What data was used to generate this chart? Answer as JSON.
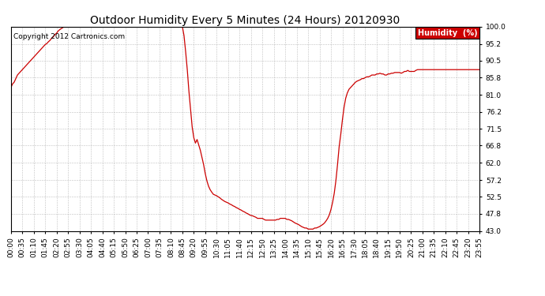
{
  "title": "Outdoor Humidity Every 5 Minutes (24 Hours) 20120930",
  "copyright": "Copyright 2012 Cartronics.com",
  "legend_label": "Humidity  (%)",
  "line_color": "#cc0000",
  "background_color": "#ffffff",
  "grid_color": "#b0b0b0",
  "ylim": [
    43.0,
    100.0
  ],
  "yticks": [
    43.0,
    47.8,
    52.5,
    57.2,
    62.0,
    66.8,
    71.5,
    76.2,
    81.0,
    85.8,
    90.5,
    95.2,
    100.0
  ],
  "title_fontsize": 10,
  "tick_fontsize": 6.5,
  "xtick_step": 7,
  "n_points": 288,
  "data": [
    83.0,
    84.0,
    84.5,
    85.5,
    86.5,
    87.0,
    87.5,
    88.0,
    88.5,
    89.0,
    89.5,
    90.0,
    90.5,
    91.0,
    91.5,
    92.0,
    92.5,
    93.0,
    93.5,
    94.0,
    94.5,
    95.0,
    95.3,
    95.8,
    96.2,
    96.8,
    97.2,
    97.8,
    98.2,
    98.8,
    99.2,
    99.5,
    99.8,
    100.0,
    100.0,
    100.0,
    100.0,
    100.0,
    100.0,
    100.0,
    100.0,
    100.0,
    100.0,
    100.0,
    100.0,
    100.0,
    100.0,
    100.0,
    100.0,
    100.0,
    100.0,
    100.0,
    100.0,
    100.0,
    100.0,
    100.0,
    100.0,
    100.0,
    100.0,
    100.0,
    100.0,
    100.0,
    100.0,
    100.0,
    100.0,
    100.0,
    100.0,
    100.0,
    100.0,
    100.0,
    100.0,
    100.0,
    100.0,
    100.0,
    100.0,
    100.0,
    100.0,
    100.0,
    100.0,
    100.0,
    100.0,
    100.0,
    100.0,
    100.0,
    100.0,
    100.0,
    100.0,
    100.0,
    100.0,
    100.0,
    100.0,
    100.0,
    100.0,
    100.0,
    100.0,
    100.0,
    100.0,
    100.0,
    100.0,
    100.0,
    100.0,
    100.0,
    100.0,
    100.0,
    100.0,
    100.0,
    97.5,
    93.0,
    88.0,
    82.0,
    77.0,
    72.0,
    69.0,
    67.5,
    68.5,
    67.0,
    65.5,
    63.5,
    61.5,
    59.0,
    57.0,
    55.5,
    54.5,
    53.8,
    53.2,
    53.0,
    52.8,
    52.5,
    52.2,
    51.8,
    51.5,
    51.2,
    51.0,
    50.8,
    50.5,
    50.3,
    50.0,
    49.8,
    49.5,
    49.3,
    49.0,
    48.8,
    48.5,
    48.3,
    48.0,
    47.8,
    47.5,
    47.3,
    47.2,
    47.0,
    46.8,
    46.5,
    46.5,
    46.5,
    46.5,
    46.2,
    46.0,
    46.0,
    46.0,
    46.0,
    46.0,
    46.0,
    46.0,
    46.2,
    46.2,
    46.5,
    46.5,
    46.5,
    46.5,
    46.2,
    46.2,
    46.0,
    45.8,
    45.5,
    45.2,
    45.0,
    44.8,
    44.5,
    44.2,
    44.0,
    43.8,
    43.8,
    43.5,
    43.5,
    43.5,
    43.5,
    43.8,
    43.8,
    44.0,
    44.2,
    44.5,
    44.8,
    45.2,
    45.8,
    46.5,
    47.5,
    49.0,
    51.0,
    53.5,
    57.0,
    61.5,
    66.5,
    70.0,
    74.0,
    77.5,
    80.0,
    81.5,
    82.5,
    83.0,
    83.5,
    84.0,
    84.5,
    84.8,
    85.0,
    85.2,
    85.5,
    85.5,
    85.8,
    86.0,
    86.0,
    86.2,
    86.5,
    86.5,
    86.5,
    86.8,
    86.8,
    87.0,
    86.8,
    86.8,
    86.5,
    86.5,
    86.8,
    86.8,
    87.0,
    87.0,
    87.2,
    87.2,
    87.2,
    87.2,
    87.0,
    87.2,
    87.5,
    87.5,
    87.8,
    87.5,
    87.5,
    87.5,
    87.5,
    87.8,
    88.0,
    88.0,
    88.0,
    88.0,
    88.0,
    88.0,
    88.0,
    88.0,
    88.0,
    88.0,
    88.0,
    88.0,
    88.0,
    88.0,
    88.0,
    88.0,
    88.0,
    88.0,
    88.0,
    88.0,
    88.0,
    88.0,
    88.0,
    88.0,
    88.0,
    88.0,
    88.0,
    88.0,
    88.0,
    88.0,
    88.0,
    88.0,
    88.0,
    88.0,
    88.0,
    88.0,
    88.0,
    88.0,
    88.0
  ]
}
